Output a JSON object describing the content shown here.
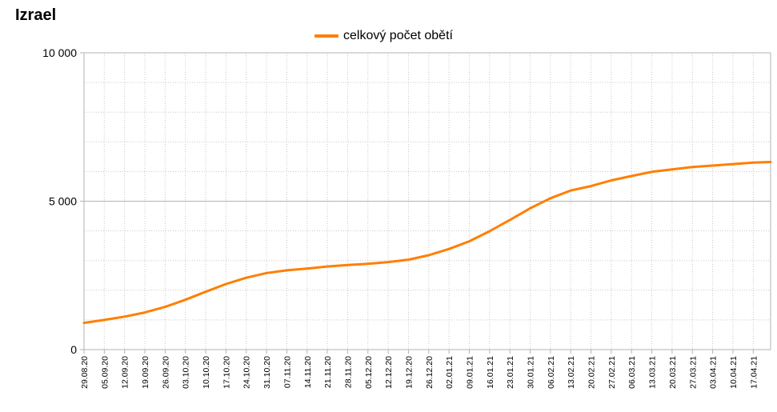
{
  "chart_data": {
    "type": "line",
    "title": "Izrael",
    "ylim": [
      0,
      10000
    ],
    "y_ticks": [
      0,
      5000,
      10000
    ],
    "y_tick_labels": [
      "0",
      "5 000",
      "10 000"
    ],
    "x_tick_labels": [
      "29.08.20",
      "05.09.20",
      "12.09.20",
      "19.09.20",
      "26.09.20",
      "03.10.20",
      "10.10.20",
      "17.10.20",
      "24.10.20",
      "31.10.20",
      "07.11.20",
      "14.11.20",
      "21.11.20",
      "28.11.20",
      "05.12.20",
      "12.12.20",
      "19.12.20",
      "26.12.20",
      "02.01.21",
      "09.01.21",
      "16.01.21",
      "23.01.21",
      "30.01.21",
      "06.02.21",
      "13.02.21",
      "20.02.21",
      "27.02.21",
      "06.03.21",
      "13.03.21",
      "20.03.21",
      "27.03.21",
      "03.04.21",
      "10.04.21",
      "17.04.21"
    ],
    "x_range": [
      "29.08.20",
      "23.04.21"
    ],
    "grid": "on",
    "legend_position": "top-center",
    "series": [
      {
        "name": "celkový počet obětí",
        "color": "#ff7f00",
        "x": [
          "29.08.20",
          "05.09.20",
          "12.09.20",
          "19.09.20",
          "26.09.20",
          "03.10.20",
          "10.10.20",
          "17.10.20",
          "24.10.20",
          "31.10.20",
          "07.11.20",
          "14.11.20",
          "21.11.20",
          "28.11.20",
          "05.12.20",
          "12.12.20",
          "19.12.20",
          "26.12.20",
          "02.01.21",
          "09.01.21",
          "16.01.21",
          "23.01.21",
          "30.01.21",
          "06.02.21",
          "13.02.21",
          "20.02.21",
          "27.02.21",
          "06.03.21",
          "13.03.21",
          "20.03.21",
          "27.03.21",
          "03.04.21",
          "10.04.21",
          "17.04.21",
          "23.04.21"
        ],
        "values": [
          900,
          1000,
          1110,
          1250,
          1440,
          1680,
          1950,
          2210,
          2420,
          2580,
          2670,
          2730,
          2800,
          2850,
          2890,
          2950,
          3030,
          3180,
          3390,
          3650,
          3990,
          4370,
          4760,
          5100,
          5360,
          5510,
          5700,
          5850,
          5990,
          6070,
          6150,
          6200,
          6250,
          6300,
          6320
        ]
      }
    ]
  }
}
